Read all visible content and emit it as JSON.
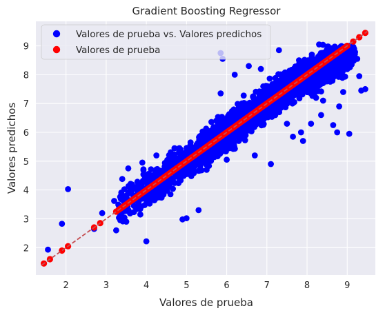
{
  "chart_data": {
    "type": "scatter",
    "title": "Gradient Boosting Regressor",
    "xlabel": "Valores de prueba",
    "ylabel": "Valores predichos",
    "xlim": [
      1.25,
      9.7
    ],
    "ylim": [
      1.05,
      9.85
    ],
    "xticks": [
      2,
      3,
      4,
      5,
      6,
      7,
      8,
      9
    ],
    "yticks": [
      2,
      3,
      4,
      5,
      6,
      7,
      8,
      9
    ],
    "grid": true,
    "legend_position": "top-left",
    "background": "#eaeaf2",
    "series": [
      {
        "name": "Valores de prueba vs. Valores predichos",
        "color": "#0000ff",
        "kind": "scatter",
        "points": [
          [
            1.55,
            1.93
          ],
          [
            1.9,
            2.83
          ],
          [
            2.05,
            4.03
          ],
          [
            2.7,
            2.65
          ],
          [
            2.9,
            3.2
          ],
          [
            3.25,
            2.6
          ],
          [
            3.2,
            3.62
          ],
          [
            3.35,
            2.95
          ],
          [
            3.5,
            2.9
          ],
          [
            3.4,
            4.38
          ],
          [
            3.55,
            4.75
          ],
          [
            3.75,
            3.35
          ],
          [
            3.85,
            3.15
          ],
          [
            4.0,
            2.22
          ],
          [
            3.9,
            4.95
          ],
          [
            4.1,
            4.45
          ],
          [
            4.25,
            5.2
          ],
          [
            4.6,
            3.85
          ],
          [
            4.7,
            5.45
          ],
          [
            4.9,
            2.98
          ],
          [
            5.0,
            3.02
          ],
          [
            5.3,
            3.3
          ],
          [
            5.1,
            5.65
          ],
          [
            5.5,
            4.7
          ],
          [
            5.85,
            8.75
          ],
          [
            5.9,
            8.55
          ],
          [
            5.85,
            7.35
          ],
          [
            6.2,
            8.0
          ],
          [
            6.0,
            5.05
          ],
          [
            6.3,
            5.7
          ],
          [
            6.55,
            8.3
          ],
          [
            6.7,
            5.2
          ],
          [
            6.85,
            8.2
          ],
          [
            7.1,
            4.9
          ],
          [
            7.3,
            8.85
          ],
          [
            7.5,
            6.3
          ],
          [
            7.65,
            5.85
          ],
          [
            7.8,
            8.5
          ],
          [
            7.9,
            5.7
          ],
          [
            8.1,
            6.3
          ],
          [
            8.3,
            9.05
          ],
          [
            8.35,
            6.6
          ],
          [
            8.4,
            7.1
          ],
          [
            8.75,
            6.0
          ],
          [
            8.9,
            7.4
          ],
          [
            9.05,
            5.95
          ],
          [
            9.15,
            8.7
          ],
          [
            9.3,
            7.95
          ],
          [
            9.35,
            7.45
          ],
          [
            9.45,
            7.5
          ],
          [
            9.25,
            8.55
          ],
          [
            8.65,
            6.25
          ],
          [
            8.8,
            6.9
          ],
          [
            7.85,
            6.0
          ],
          [
            7.95,
            7.45
          ]
        ]
      },
      {
        "name": "Valores de prueba",
        "color": "#ff0000",
        "kind": "identity",
        "points": [
          [
            1.45,
            1.45
          ],
          [
            1.6,
            1.6
          ],
          [
            1.9,
            1.9
          ],
          [
            2.05,
            2.05
          ],
          [
            2.7,
            2.7
          ],
          [
            2.85,
            2.85
          ],
          [
            3.25,
            3.25
          ],
          [
            9.0,
            9.0
          ],
          [
            9.15,
            9.15
          ],
          [
            9.3,
            9.3
          ],
          [
            9.45,
            9.45
          ]
        ]
      }
    ],
    "reference_line": {
      "from": [
        1.4,
        1.4
      ],
      "to": [
        9.5,
        9.5
      ],
      "color": "#c44e52",
      "style": "dashed"
    }
  }
}
